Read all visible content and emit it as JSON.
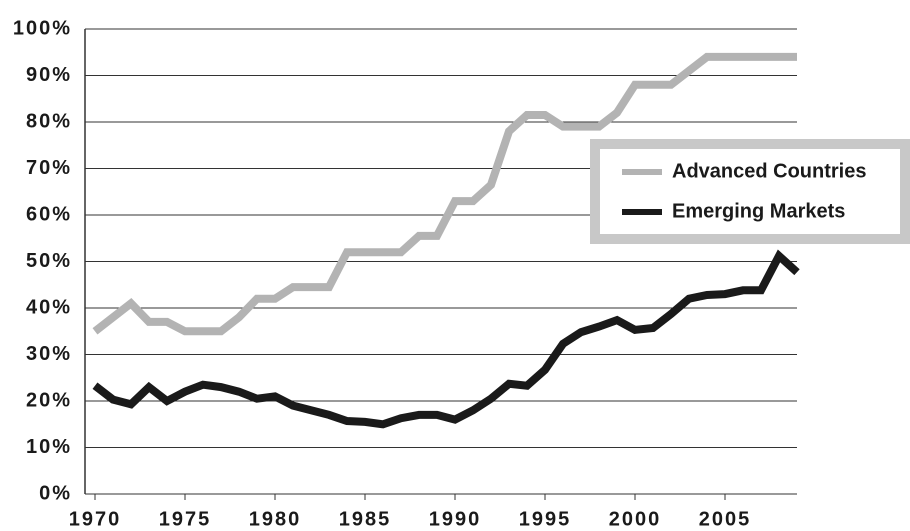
{
  "chart_data": {
    "type": "line",
    "x": [
      1970,
      1971,
      1972,
      1973,
      1974,
      1975,
      1976,
      1977,
      1978,
      1979,
      1980,
      1981,
      1982,
      1983,
      1984,
      1985,
      1986,
      1987,
      1988,
      1989,
      1990,
      1991,
      1992,
      1993,
      1994,
      1995,
      1996,
      1997,
      1998,
      1999,
      2000,
      2001,
      2002,
      2003,
      2004,
      2005,
      2006,
      2007,
      2008,
      2009
    ],
    "series": [
      {
        "name": "Advanced Countries",
        "color": "#b3b3b3",
        "values": [
          35,
          38,
          41,
          37,
          37,
          35,
          35,
          35,
          38,
          42,
          42,
          44.5,
          44.5,
          44.5,
          52,
          52,
          52,
          52,
          55.5,
          55.5,
          63,
          63,
          66.5,
          78,
          81.5,
          81.5,
          79,
          79,
          79,
          82,
          88,
          88,
          88,
          91,
          94,
          94,
          94,
          94,
          94,
          94
        ]
      },
      {
        "name": "Emerging Markets",
        "color": "#1a1a1a",
        "values": [
          23.3,
          20.3,
          19.3,
          23,
          20,
          22,
          23.5,
          23,
          22,
          20.5,
          21,
          19,
          18,
          17,
          15.7,
          15.5,
          15,
          16.3,
          17,
          17,
          16,
          18,
          20.5,
          23.7,
          23.3,
          26.7,
          32.3,
          34.8,
          36,
          37.4,
          35.3,
          35.7,
          38.7,
          42,
          42.8,
          43,
          43.8,
          43.8,
          51.2,
          47.7
        ]
      }
    ],
    "xlim": [
      1970,
      2009
    ],
    "xticks": [
      1970,
      1975,
      1980,
      1985,
      1990,
      1995,
      2000,
      2005
    ],
    "ylim": [
      0,
      100
    ],
    "yticks": [
      {
        "value": 0,
        "label": "0%"
      },
      {
        "value": 10,
        "label": "10%"
      },
      {
        "value": 20,
        "label": "20%"
      },
      {
        "value": 30,
        "label": "30%"
      },
      {
        "value": 40,
        "label": "40%"
      },
      {
        "value": 50,
        "label": "50%"
      },
      {
        "value": 60,
        "label": "60%"
      },
      {
        "value": 70,
        "label": "70%"
      },
      {
        "value": 80,
        "label": "80%"
      },
      {
        "value": 90,
        "label": "90%"
      },
      {
        "value": 100,
        "label": "100%"
      }
    ],
    "grid": true,
    "legend": "upper right"
  }
}
